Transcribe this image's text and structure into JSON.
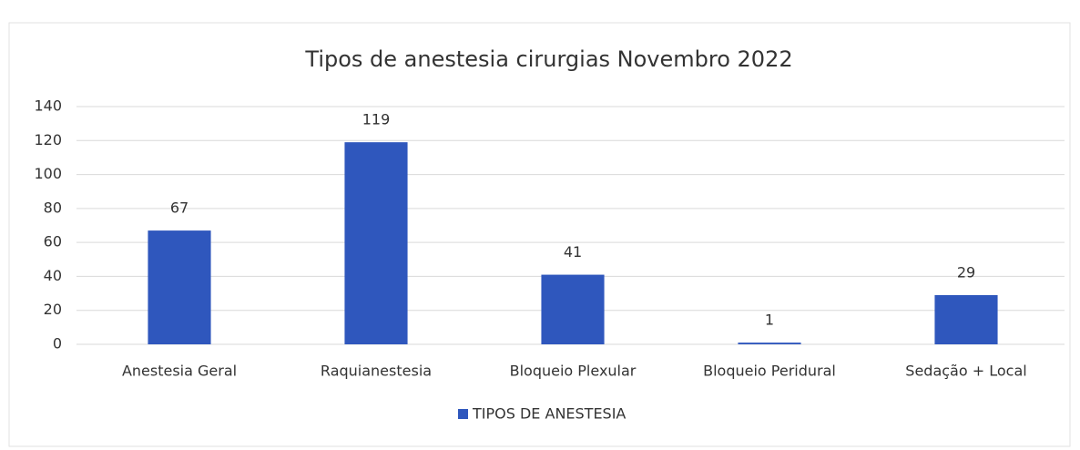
{
  "chart_data": {
    "type": "bar",
    "title": "Tipos de anestesia cirurgias Novembro 2022",
    "categories": [
      "Anestesia Geral",
      "Raquianestesia",
      "Bloqueio Plexular",
      "Bloqueio Peridural",
      "Sedação + Local"
    ],
    "series": [
      {
        "name": "TIPOS DE ANESTESIA",
        "color": "#2f57bd",
        "values": [
          67,
          119,
          41,
          1,
          29
        ]
      }
    ],
    "ylim": [
      0,
      140
    ],
    "yticks": [
      0,
      20,
      40,
      60,
      80,
      100,
      120,
      140
    ],
    "grid": true,
    "legend": "bottom"
  }
}
